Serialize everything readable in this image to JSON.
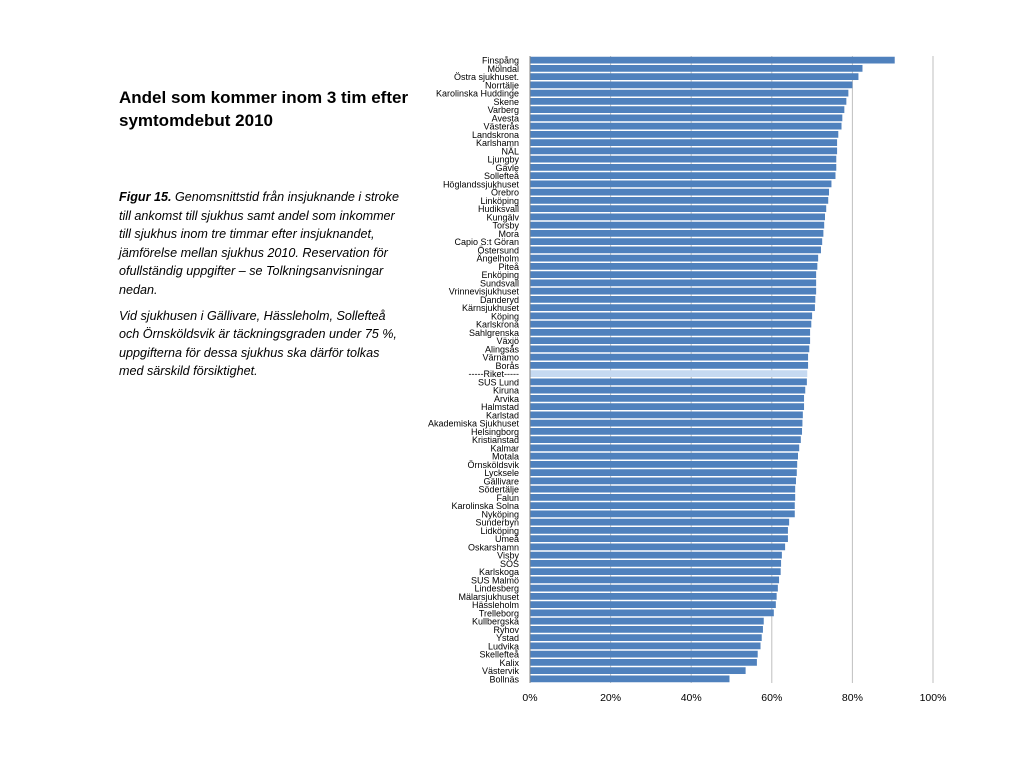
{
  "slide": {
    "title": "Andel som kommer inom 3 tim efter symtomdebut 2010",
    "figure_label": "Figur 15.",
    "figure_text": "Genomsnittstid från insjuknande i stroke till ankomst till sjukhus samt andel som inkommer till sjukhus inom tre timmar efter insjuknandet, jämförelse mellan sjukhus 2010. Reservation för ofullständig uppgifter – se Tolkningsanvisningar nedan.",
    "note": "Vid sjukhusen i Gällivare, Hässleholm, Sollefteå och Örnsköldsvik är täckningsgraden under 75 %, uppgifterna för dessa sjukhus ska därför tolkas med särskild försiktighet."
  },
  "chart_data": {
    "type": "bar",
    "orientation": "horizontal",
    "title": "",
    "xlabel": "",
    "ylabel": "",
    "xlim": [
      0,
      1
    ],
    "x_tick_labels": [
      "0%",
      "20%",
      "40%",
      "60%",
      "80%",
      "100%"
    ],
    "grid": true,
    "legend": "none",
    "bar_color": "#4f81bd",
    "highlight_color": "#c5d9f1",
    "highlight_category": "-----Riket-----",
    "categories": [
      "Finspång",
      "Mölndal",
      "Östra sjukhuset.",
      "Norrtälje",
      "Karolinska Huddinge",
      "Skene",
      "Varberg",
      "Avesta",
      "Västerås",
      "Landskrona",
      "Karlshamn",
      "NÄL",
      "Ljungby",
      "Gävle",
      "Sollefteå",
      "Höglandssjukhuset",
      "Örebro",
      "Linköping",
      "Hudiksvall",
      "Kungälv",
      "Torsby",
      "Mora",
      "Capio S:t Göran",
      "Östersund",
      "Ängelholm",
      "Piteå",
      "Enköping",
      "Sundsvall",
      "Vrinnevisjukhuset",
      "Danderyd",
      "Kärnsjukhuset",
      "Köping",
      "Karlskrona",
      "Sahlgrenska",
      "Växjö",
      "Alingsås",
      "Värnamo",
      "Borås",
      "-----Riket-----",
      "SUS Lund",
      "Kiruna",
      "Arvika",
      "Halmstad",
      "Karlstad",
      "Akademiska Sjukhuset",
      "Helsingborg",
      "Kristianstad",
      "Kalmar",
      "Motala",
      "Örnsköldsvik",
      "Lycksele",
      "Gällivare",
      "Södertälje",
      "Falun",
      "Karolinska Solna",
      "Nyköping",
      "Sunderbyn",
      "Lidköping",
      "Umeå",
      "Oskarshamn",
      "Visby",
      "SÖS",
      "Karlskoga",
      "SUS Malmö",
      "Lindesberg",
      "Mälarsjukhuset",
      "Hässleholm",
      "Trelleborg",
      "Kullbergska",
      "Ryhov",
      "Ystad",
      "Ludvika",
      "Skellefteå",
      "Kalix",
      "Västervik",
      "Bollnäs"
    ],
    "values": [
      0.905,
      0.825,
      0.815,
      0.8,
      0.79,
      0.785,
      0.78,
      0.775,
      0.773,
      0.765,
      0.762,
      0.762,
      0.76,
      0.76,
      0.758,
      0.748,
      0.742,
      0.74,
      0.735,
      0.732,
      0.73,
      0.728,
      0.725,
      0.722,
      0.715,
      0.713,
      0.71,
      0.71,
      0.71,
      0.708,
      0.707,
      0.7,
      0.698,
      0.695,
      0.695,
      0.693,
      0.69,
      0.69,
      0.688,
      0.687,
      0.683,
      0.68,
      0.68,
      0.677,
      0.676,
      0.675,
      0.672,
      0.668,
      0.665,
      0.663,
      0.662,
      0.66,
      0.658,
      0.658,
      0.657,
      0.657,
      0.643,
      0.64,
      0.64,
      0.633,
      0.625,
      0.623,
      0.622,
      0.618,
      0.615,
      0.612,
      0.61,
      0.605,
      0.58,
      0.578,
      0.575,
      0.572,
      0.565,
      0.563,
      0.535,
      0.495
    ]
  }
}
